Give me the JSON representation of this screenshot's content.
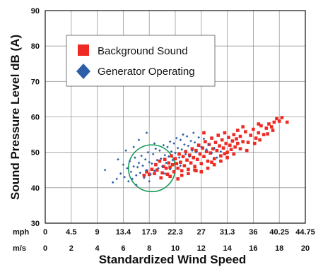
{
  "chart_data": {
    "type": "scatter",
    "title": "",
    "xlabel": "Standardized Wind Speed",
    "ylabel": "Sound Pressure Level dB (A)",
    "ylim": [
      30,
      90
    ],
    "xlim_ms": [
      0,
      20
    ],
    "y_ticks": [
      30,
      40,
      50,
      60,
      70,
      80,
      90
    ],
    "x_ticks_mph": {
      "unit": "mph",
      "labels": [
        "0",
        "4.5",
        "9",
        "13.4",
        "17.9",
        "22.3",
        "27",
        "31.3",
        "36",
        "40.25",
        "44.75"
      ],
      "positions_ms": [
        0,
        2,
        4,
        6,
        8,
        10,
        12,
        14,
        16,
        18,
        20
      ]
    },
    "x_ticks_ms": {
      "unit": "m/s",
      "labels": [
        "0",
        "2",
        "4",
        "6",
        "8",
        "10",
        "12",
        "14",
        "16",
        "18",
        "20"
      ],
      "positions_ms": [
        0,
        2,
        4,
        6,
        8,
        10,
        12,
        14,
        16,
        18,
        20
      ]
    },
    "grid": true,
    "legend": {
      "position": "top-left",
      "entries": [
        {
          "label": "Background Sound",
          "color": "#ee2a24",
          "marker": "square"
        },
        {
          "label": "Generator Operating",
          "color": "#2d5ea8",
          "marker": "diamond"
        }
      ]
    },
    "annotation": {
      "type": "circle",
      "center_ms": 8.2,
      "center_db": 45.5,
      "radius_ms": 1.8,
      "color": "#1a9a5a"
    },
    "series": [
      {
        "name": "Background Sound",
        "color": "#ee2a24",
        "marker": "square",
        "points": [
          [
            7.6,
            43.5
          ],
          [
            7.8,
            44.5
          ],
          [
            8.0,
            43.8
          ],
          [
            8.2,
            45.2
          ],
          [
            8.4,
            44.0
          ],
          [
            8.5,
            46.5
          ],
          [
            8.6,
            45.0
          ],
          [
            8.8,
            47.5
          ],
          [
            9.0,
            44.2
          ],
          [
            9.1,
            46.0
          ],
          [
            9.2,
            48.0
          ],
          [
            9.3,
            45.5
          ],
          [
            9.4,
            43.8
          ],
          [
            9.5,
            47.0
          ],
          [
            9.6,
            45.8
          ],
          [
            9.7,
            49.0
          ],
          [
            9.8,
            46.5
          ],
          [
            9.9,
            44.5
          ],
          [
            10.0,
            48.2
          ],
          [
            10.1,
            46.8
          ],
          [
            10.2,
            45.5
          ],
          [
            10.3,
            49.5
          ],
          [
            10.4,
            47.2
          ],
          [
            10.5,
            44.8
          ],
          [
            10.6,
            48.8
          ],
          [
            10.7,
            46.2
          ],
          [
            10.8,
            50.2
          ],
          [
            10.9,
            47.8
          ],
          [
            11.0,
            45.2
          ],
          [
            11.1,
            49.2
          ],
          [
            11.2,
            47.0
          ],
          [
            11.3,
            51.0
          ],
          [
            11.4,
            48.5
          ],
          [
            11.5,
            46.0
          ],
          [
            11.6,
            50.5
          ],
          [
            11.7,
            48.0
          ],
          [
            11.8,
            52.0
          ],
          [
            11.9,
            49.5
          ],
          [
            12.0,
            46.8
          ],
          [
            12.1,
            51.2
          ],
          [
            12.2,
            48.8
          ],
          [
            12.3,
            53.0
          ],
          [
            12.4,
            50.2
          ],
          [
            12.5,
            47.5
          ],
          [
            12.6,
            52.2
          ],
          [
            12.7,
            49.8
          ],
          [
            12.8,
            54.0
          ],
          [
            12.9,
            51.0
          ],
          [
            13.0,
            48.2
          ],
          [
            13.1,
            52.8
          ],
          [
            13.2,
            50.5
          ],
          [
            13.3,
            54.8
          ],
          [
            13.4,
            51.8
          ],
          [
            13.5,
            49.0
          ],
          [
            13.6,
            53.5
          ],
          [
            13.7,
            51.2
          ],
          [
            13.8,
            55.5
          ],
          [
            13.9,
            52.5
          ],
          [
            14.0,
            50.0
          ],
          [
            14.1,
            54.2
          ],
          [
            14.2,
            52.0
          ],
          [
            14.3,
            50.8
          ],
          [
            14.4,
            53.2
          ],
          [
            14.5,
            55.0
          ],
          [
            14.6,
            51.5
          ],
          [
            14.7,
            53.8
          ],
          [
            14.8,
            52.5
          ],
          [
            15.0,
            54.5
          ],
          [
            15.2,
            53.0
          ],
          [
            15.4,
            55.8
          ],
          [
            15.6,
            52.8
          ],
          [
            15.8,
            54.8
          ],
          [
            16.0,
            56.5
          ],
          [
            16.2,
            54.0
          ],
          [
            16.4,
            55.5
          ],
          [
            16.6,
            57.5
          ],
          [
            16.8,
            55.0
          ],
          [
            17.0,
            56.8
          ],
          [
            17.2,
            58.0
          ],
          [
            17.4,
            57.2
          ],
          [
            17.6,
            58.5
          ],
          [
            17.8,
            59.5
          ],
          [
            18.0,
            58.8
          ],
          [
            18.2,
            59.8
          ],
          [
            18.6,
            58.5
          ],
          [
            10.5,
            43.5
          ],
          [
            11.0,
            44.0
          ],
          [
            11.5,
            45.0
          ],
          [
            12.0,
            44.5
          ],
          [
            12.5,
            45.5
          ],
          [
            13.0,
            46.5
          ],
          [
            13.5,
            47.5
          ],
          [
            14.0,
            48.5
          ],
          [
            14.5,
            49.5
          ],
          [
            15.0,
            51.0
          ],
          [
            8.9,
            42.8
          ],
          [
            9.6,
            43.2
          ],
          [
            10.2,
            42.5
          ],
          [
            15.5,
            50.5
          ],
          [
            16.1,
            52.5
          ],
          [
            16.5,
            53.5
          ],
          [
            17.1,
            55.2
          ],
          [
            12.8,
            47.2
          ],
          [
            11.6,
            44.8
          ],
          [
            13.8,
            49.6
          ],
          [
            15.2,
            57.2
          ],
          [
            14.8,
            56.2
          ],
          [
            16.4,
            58.0
          ],
          [
            17.5,
            56.2
          ],
          [
            12.2,
            55.5
          ]
        ]
      },
      {
        "name": "Generator Operating",
        "color": "#2d5ea8",
        "marker": "diamond",
        "points": [
          [
            4.6,
            45.0
          ],
          [
            5.2,
            41.5
          ],
          [
            5.5,
            42.5
          ],
          [
            5.8,
            44.0
          ],
          [
            6.0,
            46.5
          ],
          [
            6.1,
            43.0
          ],
          [
            6.3,
            45.5
          ],
          [
            6.4,
            41.8
          ],
          [
            6.5,
            47.5
          ],
          [
            6.6,
            44.5
          ],
          [
            6.7,
            42.5
          ],
          [
            6.8,
            46.0
          ],
          [
            6.9,
            48.5
          ],
          [
            7.0,
            43.5
          ],
          [
            7.1,
            45.8
          ],
          [
            7.2,
            47.0
          ],
          [
            7.3,
            44.2
          ],
          [
            7.4,
            49.0
          ],
          [
            7.5,
            46.2
          ],
          [
            7.6,
            42.8
          ],
          [
            7.7,
            48.0
          ],
          [
            7.8,
            45.0
          ],
          [
            7.9,
            50.0
          ],
          [
            8.0,
            47.2
          ],
          [
            8.1,
            43.8
          ],
          [
            8.2,
            46.8
          ],
          [
            8.3,
            49.5
          ],
          [
            8.4,
            44.8
          ],
          [
            8.5,
            51.0
          ],
          [
            8.6,
            47.8
          ],
          [
            8.7,
            45.5
          ],
          [
            8.8,
            50.5
          ],
          [
            8.9,
            48.2
          ],
          [
            9.0,
            46.0
          ],
          [
            9.1,
            52.0
          ],
          [
            9.2,
            49.2
          ],
          [
            9.3,
            47.0
          ],
          [
            9.4,
            51.5
          ],
          [
            9.5,
            48.8
          ],
          [
            9.6,
            53.0
          ],
          [
            9.7,
            50.2
          ],
          [
            9.8,
            47.8
          ],
          [
            9.9,
            52.5
          ],
          [
            10.0,
            49.8
          ],
          [
            10.1,
            54.0
          ],
          [
            10.2,
            51.2
          ],
          [
            10.3,
            48.5
          ],
          [
            10.4,
            53.5
          ],
          [
            10.5,
            50.8
          ],
          [
            10.6,
            55.0
          ],
          [
            10.7,
            52.2
          ],
          [
            10.8,
            49.5
          ],
          [
            10.9,
            54.5
          ],
          [
            11.0,
            51.8
          ],
          [
            11.1,
            48.8
          ],
          [
            11.2,
            53.2
          ],
          [
            11.3,
            50.5
          ],
          [
            11.4,
            55.5
          ],
          [
            11.5,
            52.8
          ],
          [
            11.6,
            50.0
          ],
          [
            11.8,
            54.2
          ],
          [
            12.0,
            51.5
          ],
          [
            12.2,
            53.8
          ],
          [
            12.4,
            50.8
          ],
          [
            12.6,
            52.2
          ],
          [
            12.8,
            49.8
          ],
          [
            13.0,
            51.2
          ],
          [
            13.2,
            48.5
          ],
          [
            13.5,
            50.2
          ],
          [
            7.2,
            53.5
          ],
          [
            6.2,
            50.5
          ],
          [
            7.8,
            55.5
          ],
          [
            8.4,
            52.5
          ],
          [
            5.6,
            48.0
          ],
          [
            6.8,
            51.5
          ],
          [
            9.6,
            45.2
          ],
          [
            10.4,
            46.2
          ],
          [
            8.0,
            41.8
          ],
          [
            7.0,
            40.8
          ],
          [
            9.2,
            44.0
          ]
        ]
      }
    ]
  }
}
